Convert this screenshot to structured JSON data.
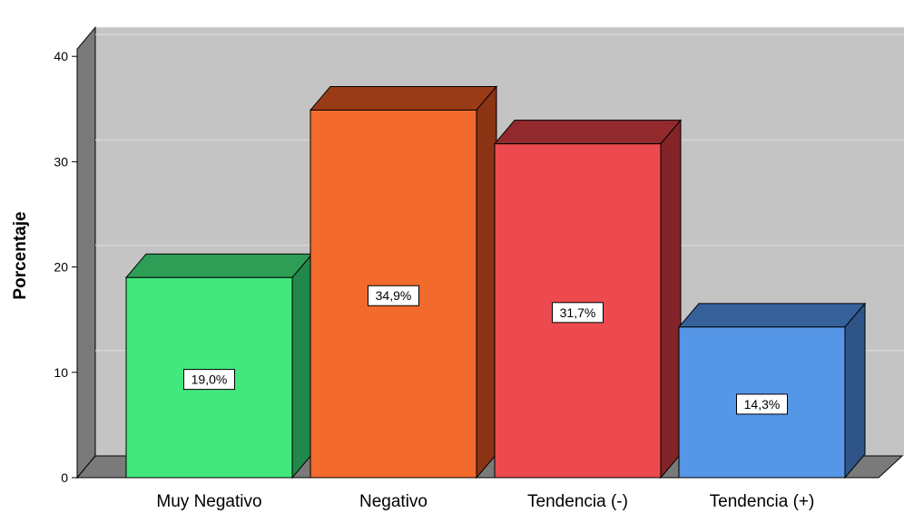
{
  "chart_data": {
    "type": "bar",
    "title": "",
    "xlabel": "",
    "ylabel": "Porcentaje",
    "ylim": [
      0,
      40
    ],
    "yticks": [
      0,
      10,
      20,
      30,
      40
    ],
    "grid": true,
    "three_d": true,
    "categories": [
      "Muy Negativo",
      "Negativo",
      "Tendencia (-)",
      "Tendencia (+)"
    ],
    "values": [
      19.0,
      34.9,
      31.7,
      14.3
    ],
    "data_labels": [
      "19,0%",
      "34,9%",
      "31,7%",
      "14,3%"
    ],
    "colors": [
      {
        "front": "#42E87E",
        "top": "#2E9E57",
        "side": "#22874A"
      },
      {
        "front": "#F26A2C",
        "top": "#9A3B18",
        "side": "#8A3414"
      },
      {
        "front": "#EC4A4E",
        "top": "#922A2D",
        "side": "#822428"
      },
      {
        "front": "#5596E6",
        "top": "#36609A",
        "side": "#2F5488"
      }
    ],
    "plot_background": "#C4C4C4",
    "wall_color": "#7A7A7A"
  }
}
